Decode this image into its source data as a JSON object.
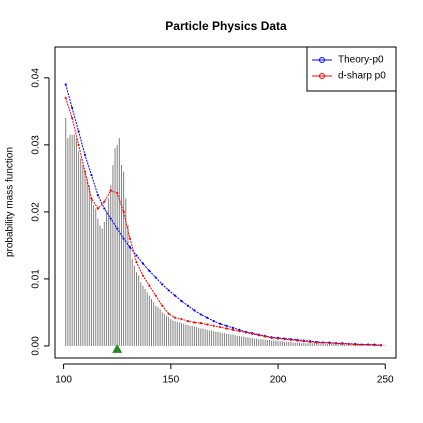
{
  "chart_data": {
    "type": "spike-lines",
    "title": "Particle Physics Data",
    "ylabel": "probability mass function",
    "color": "#808080",
    "x": [
      101,
      102,
      103,
      104,
      105,
      106,
      107,
      108,
      109,
      110,
      111,
      112,
      113,
      114,
      115,
      116,
      117,
      118,
      119,
      120,
      121,
      122,
      123,
      124,
      125,
      126,
      127,
      128,
      129,
      130,
      131,
      132,
      133,
      134,
      135,
      136,
      137,
      138,
      139,
      140,
      141,
      142,
      143,
      144,
      145,
      146,
      147,
      148,
      149,
      150,
      151,
      152,
      153,
      154,
      155,
      156,
      157,
      158,
      159,
      160,
      161,
      162,
      163,
      164,
      165,
      166,
      167,
      168,
      169,
      170,
      171,
      172,
      173,
      174,
      175,
      176,
      177,
      178,
      179,
      180,
      181,
      182,
      183,
      184,
      185,
      186,
      187,
      188,
      189,
      190,
      191,
      192,
      193,
      194,
      195,
      196,
      197,
      198,
      199,
      200,
      201,
      202,
      203,
      204,
      205,
      206,
      207,
      208,
      209,
      210,
      211,
      212,
      213,
      214,
      215,
      216,
      217,
      218,
      219,
      220,
      221,
      222,
      223,
      224,
      225,
      226,
      227,
      228,
      229,
      230,
      231,
      232,
      233,
      234,
      235,
      236,
      237,
      238,
      239,
      240,
      241,
      242,
      243,
      244,
      245,
      246,
      247,
      248,
      249,
      250
    ],
    "values": [
      0.034,
      0.031,
      0.0315,
      0.0315,
      0.0315,
      0.031,
      0.029,
      0.028,
      0.027,
      0.026,
      0.025,
      0.024,
      0.022,
      0.021,
      0.0205,
      0.019,
      0.018,
      0.0175,
      0.0185,
      0.02,
      0.022,
      0.024,
      0.027,
      0.0295,
      0.03,
      0.031,
      0.027,
      0.026,
      0.022,
      0.018,
      0.015,
      0.013,
      0.012,
      0.011,
      0.0105,
      0.0095,
      0.009,
      0.0085,
      0.008,
      0.0075,
      0.007,
      0.0065,
      0.006,
      0.0058,
      0.0055,
      0.005,
      0.0048,
      0.0045,
      0.0043,
      0.004,
      0.0038,
      0.0037,
      0.0036,
      0.0035,
      0.0034,
      0.0033,
      0.0032,
      0.0031,
      0.003,
      0.003,
      0.0029,
      0.0028,
      0.0027,
      0.0026,
      0.0026,
      0.0025,
      0.0024,
      0.0023,
      0.0023,
      0.0022,
      0.0021,
      0.0021,
      0.002,
      0.0019,
      0.0019,
      0.0018,
      0.0018,
      0.0017,
      0.0017,
      0.0016,
      0.0015,
      0.0015,
      0.0014,
      0.0014,
      0.0013,
      0.0013,
      0.0012,
      0.0012,
      0.0011,
      0.0011,
      0.001,
      0.001,
      0.001,
      0.0009,
      0.0009,
      0.0009,
      0.0008,
      0.0008,
      0.0008,
      0.0007,
      0.0007,
      0.0007,
      0.0006,
      0.0006,
      0.0006,
      0.0006,
      0.0005,
      0.0005,
      0.0005,
      0.0005,
      0.0004,
      0.0004,
      0.0004,
      0.0004,
      0.0004,
      0.0004,
      0.0004,
      0.0004,
      0.0004,
      0.0004,
      0.0003,
      0.0003,
      0.0003,
      0.0003,
      0.0003,
      0.0003,
      0.0003,
      0.0003,
      0.0003,
      0.0003,
      0.0002,
      0.0002,
      0.0002,
      0.0002,
      0.0002,
      0.0002,
      0.0002,
      0.0002,
      0.0002,
      0.0002,
      0.0002,
      0.0002,
      0.0002,
      0.0001,
      0.0001,
      0.0001,
      0.0001,
      0.0001,
      0.0001,
      0.0001
    ],
    "series": [
      {
        "name": "Theory-p0",
        "color": "#0000ff",
        "x": [
          101,
          104,
          107,
          110,
          113,
          116,
          119,
          122,
          125,
          128,
          131,
          134,
          137,
          140,
          143,
          146,
          149,
          152,
          155,
          158,
          161,
          164,
          167,
          170,
          173,
          176,
          179,
          182,
          185,
          188,
          191,
          194,
          197,
          200,
          203,
          206,
          209,
          212,
          215,
          218,
          221,
          224,
          227,
          230,
          233,
          236,
          239,
          242,
          245,
          248
        ],
        "values": [
          0.039,
          0.0355,
          0.032,
          0.0285,
          0.0255,
          0.0225,
          0.0205,
          0.019,
          0.0175,
          0.016,
          0.0147,
          0.0135,
          0.0123,
          0.0112,
          0.0102,
          0.0092,
          0.0083,
          0.0075,
          0.0067,
          0.006,
          0.0053,
          0.0047,
          0.0042,
          0.0037,
          0.0033,
          0.003,
          0.0027,
          0.0024,
          0.0021,
          0.0019,
          0.0017,
          0.0015,
          0.0013,
          0.0012,
          0.0011,
          0.001,
          0.0009,
          0.0008,
          0.0007,
          0.0006,
          0.0005,
          0.0005,
          0.0004,
          0.0004,
          0.0003,
          0.0003,
          0.0002,
          0.0002,
          0.0002,
          0.0001
        ]
      },
      {
        "name": "d-sharp p0",
        "color": "#ff0000",
        "x": [
          101,
          104,
          107,
          110,
          113,
          116,
          119,
          122,
          125,
          128,
          131,
          134,
          137,
          140,
          143,
          146,
          149,
          152,
          155,
          158,
          161,
          164,
          167,
          170,
          173,
          176,
          179,
          182,
          185,
          188,
          191,
          194,
          197,
          200,
          203,
          206,
          209,
          212,
          215,
          218,
          221,
          224,
          227,
          230,
          233,
          236,
          239,
          242,
          245,
          248
        ],
        "values": [
          0.037,
          0.034,
          0.03,
          0.026,
          0.022,
          0.0205,
          0.0215,
          0.0232,
          0.0228,
          0.02,
          0.016,
          0.0125,
          0.0105,
          0.009,
          0.0075,
          0.006,
          0.0048,
          0.0042,
          0.004,
          0.0037,
          0.0035,
          0.0034,
          0.0032,
          0.003,
          0.0028,
          0.0026,
          0.0024,
          0.0022,
          0.002,
          0.0018,
          0.0016,
          0.0014,
          0.0012,
          0.0011,
          0.001,
          0.0009,
          0.0008,
          0.0007,
          0.0006,
          0.0005,
          0.0005,
          0.0004,
          0.0004,
          0.0003,
          0.0003,
          0.0002,
          0.0002,
          0.0002,
          0.0001,
          0.0001
        ]
      }
    ],
    "marker": {
      "x": 125,
      "y": 0,
      "color": "#228b22"
    },
    "xlim": [
      96,
      255
    ],
    "ylim": [
      -0.0018,
      0.0446
    ],
    "xticks": [
      100,
      150,
      200,
      250
    ],
    "yticks": [
      {
        "value": 0,
        "label": "0.00"
      },
      {
        "value": 0.01,
        "label": "0.01"
      },
      {
        "value": 0.02,
        "label": "0.02"
      },
      {
        "value": 0.03,
        "label": "0.03"
      },
      {
        "value": 0.04,
        "label": "0.04"
      }
    ],
    "legend": "top-right"
  }
}
